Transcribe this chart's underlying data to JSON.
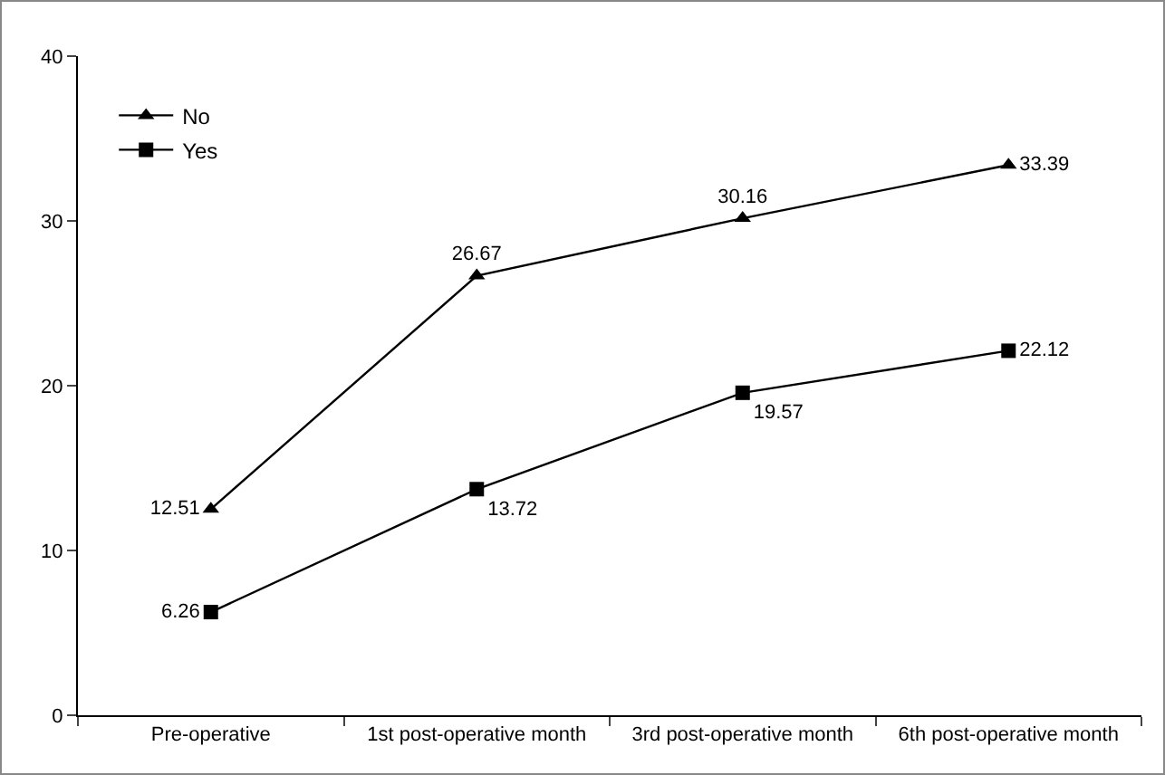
{
  "chart_data": {
    "type": "line",
    "categories": [
      "Pre-operative",
      "1st post-operative month",
      "3rd post-operative month",
      "6th post-operative month"
    ],
    "series": [
      {
        "name": "No",
        "color": "#000000",
        "marker": "triangle",
        "values": [
          12.51,
          26.67,
          30.16,
          33.39
        ]
      },
      {
        "name": "Yes",
        "color": "#000000",
        "marker": "square",
        "values": [
          6.26,
          13.72,
          19.57,
          22.12
        ]
      }
    ],
    "ylim": [
      0,
      40
    ],
    "yticks": [
      0,
      10,
      20,
      30,
      40
    ],
    "data_labels": true,
    "legend": "top left",
    "line_style": "solid"
  }
}
